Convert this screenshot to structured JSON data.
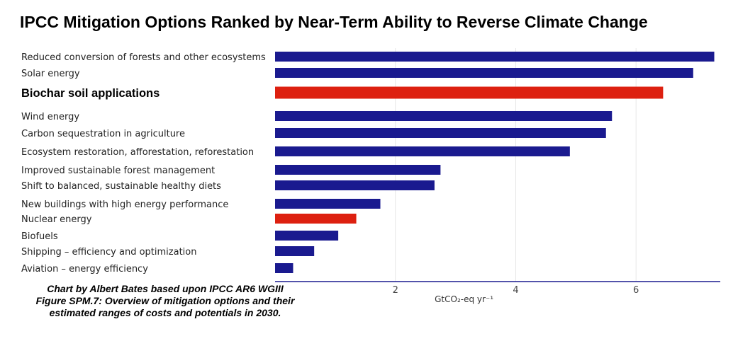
{
  "title": "IPCC Mitigation Options Ranked by Near-Term Ability to Reverse Climate Change",
  "caption": {
    "line1": "Chart by Albert Bates based upon IPCC AR6 WGIII",
    "line2": "Figure SPM.7: Overview of mitigation options and their",
    "line3": "estimated ranges of costs and potentials in 2030."
  },
  "colors": {
    "default_bar": "#1a1a8f",
    "highlight_bar": "#dd2010",
    "grid": "#e6e6e6",
    "axis": "#1a1a8f"
  },
  "chart_data": {
    "type": "bar",
    "orientation": "horizontal",
    "categories": [
      "Reduced conversion of forests and other ecosystems",
      "Solar energy",
      "Biochar soil applications",
      "Wind energy",
      "Carbon sequestration in agriculture",
      "Ecosystem restoration, afforestation, reforestation",
      "Improved sustainable forest management",
      "Shift to balanced, sustainable healthy diets",
      "New buildings with high energy performance",
      "Nuclear energy",
      "Biofuels",
      "Shipping – efficiency and optimization",
      "Aviation – energy efficiency"
    ],
    "values": [
      7.3,
      6.95,
      6.45,
      5.6,
      5.5,
      4.9,
      2.75,
      2.65,
      1.75,
      1.35,
      1.05,
      0.65,
      0.3
    ],
    "highlighted": [
      false,
      false,
      true,
      false,
      false,
      false,
      false,
      false,
      false,
      true,
      false,
      false,
      false
    ],
    "emphasized_label": [
      false,
      false,
      true,
      false,
      false,
      false,
      false,
      false,
      false,
      false,
      false,
      false,
      false
    ],
    "xticks": [
      "2",
      "4",
      "6"
    ],
    "xtick_values": [
      2,
      4,
      6
    ],
    "xlim": [
      0,
      7.4
    ],
    "xlabel": "GtCO₂-eq yr⁻¹",
    "grid": true
  }
}
